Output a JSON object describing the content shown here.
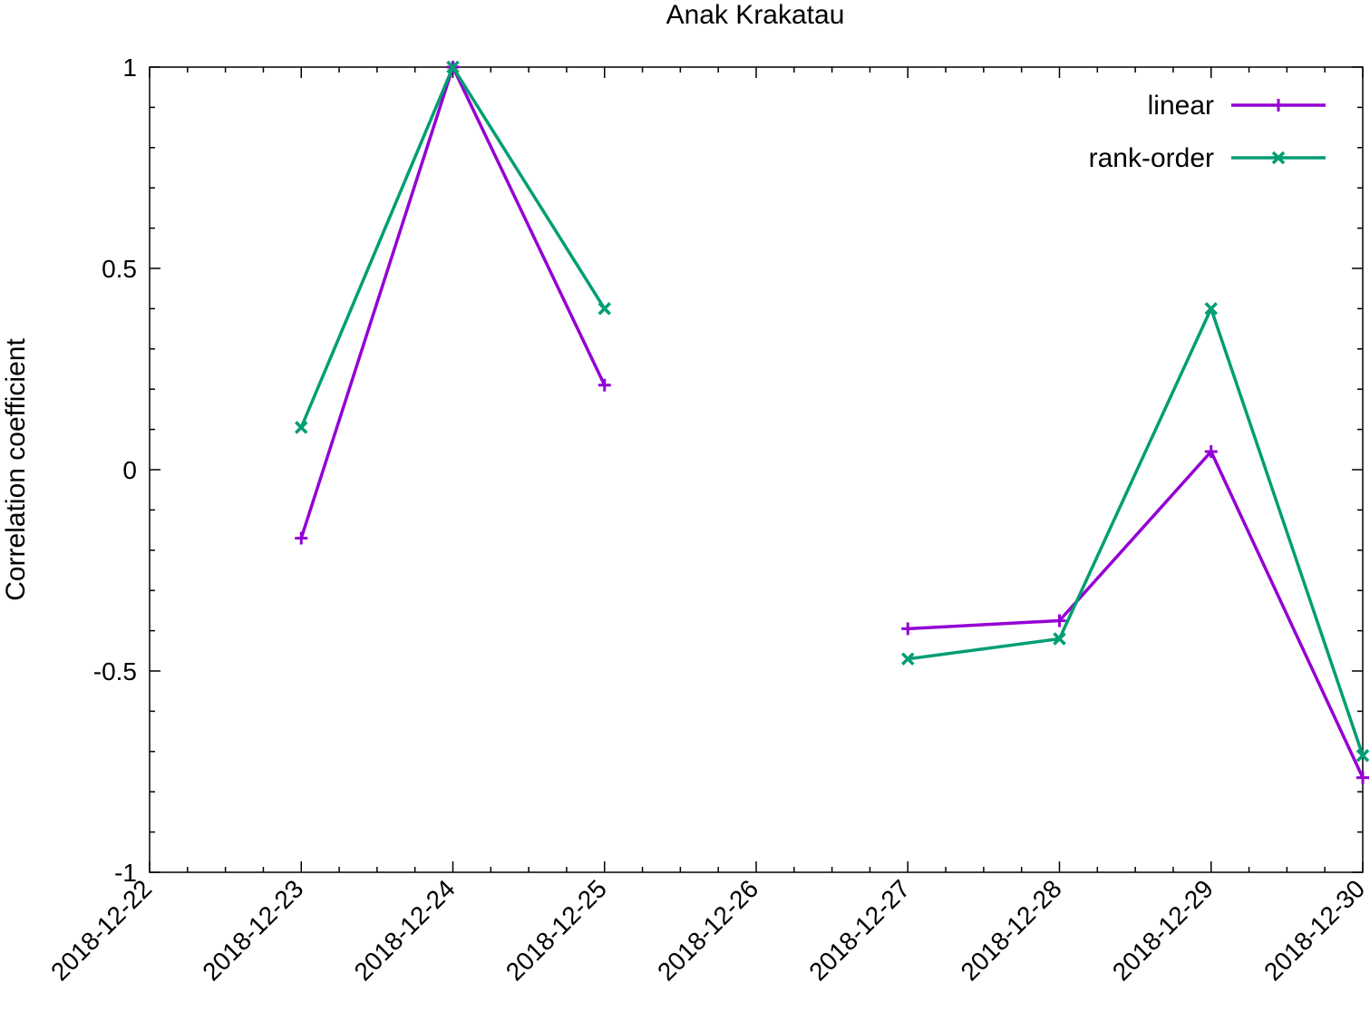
{
  "chart_data": {
    "type": "line",
    "title": "Anak Krakatau",
    "xlabel": "",
    "ylabel": "Correlation coefficient",
    "x_tick_labels": [
      "2018-12-22",
      "2018-12-23",
      "2018-12-24",
      "2018-12-25",
      "2018-12-26",
      "2018-12-27",
      "2018-12-28",
      "2018-12-29",
      "2018-12-30"
    ],
    "y_tick_labels": [
      "1",
      "0.5",
      "0",
      "-0.5",
      "-1"
    ],
    "ylim": [
      -1,
      1
    ],
    "xlim": [
      "2018-12-22",
      "2018-12-30"
    ],
    "grid": false,
    "legend_position": "top-right",
    "series": [
      {
        "name": "linear",
        "color": "#9400d3",
        "marker": "plus",
        "points": [
          {
            "x": "2018-12-23",
            "y": -0.17
          },
          {
            "x": "2018-12-24",
            "y": 1.0
          },
          {
            "x": "2018-12-25",
            "y": 0.21
          },
          {
            "x": "2018-12-26",
            "y": null
          },
          {
            "x": "2018-12-27",
            "y": -0.395
          },
          {
            "x": "2018-12-28",
            "y": -0.375
          },
          {
            "x": "2018-12-29",
            "y": 0.045
          },
          {
            "x": "2018-12-30",
            "y": -0.765
          }
        ]
      },
      {
        "name": "rank-order",
        "color": "#009e73",
        "marker": "cross",
        "points": [
          {
            "x": "2018-12-23",
            "y": 0.105
          },
          {
            "x": "2018-12-24",
            "y": 1.0
          },
          {
            "x": "2018-12-25",
            "y": 0.4
          },
          {
            "x": "2018-12-26",
            "y": null
          },
          {
            "x": "2018-12-27",
            "y": -0.47
          },
          {
            "x": "2018-12-28",
            "y": -0.42
          },
          {
            "x": "2018-12-29",
            "y": 0.4
          },
          {
            "x": "2018-12-30",
            "y": -0.71
          }
        ]
      }
    ]
  }
}
